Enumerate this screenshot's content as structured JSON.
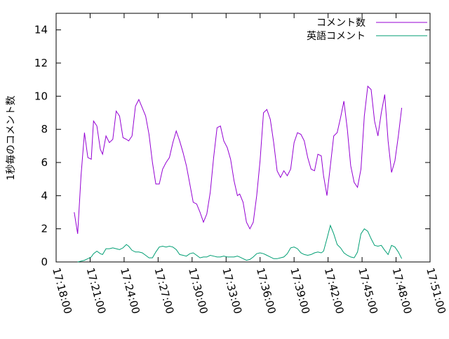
{
  "chart_data": {
    "type": "line",
    "title": "",
    "xlabel": "",
    "ylabel": "1秒毎のコメント数",
    "xlim_minutes": [
      0,
      33
    ],
    "ylim": [
      0,
      15
    ],
    "x_ticks": [
      {
        "label": "17:18:00",
        "minute": 0
      },
      {
        "label": "17:21:00",
        "minute": 3
      },
      {
        "label": "17:24:00",
        "minute": 6
      },
      {
        "label": "17:27:00",
        "minute": 9
      },
      {
        "label": "17:30:00",
        "minute": 12
      },
      {
        "label": "17:33:00",
        "minute": 15
      },
      {
        "label": "17:36:00",
        "minute": 18
      },
      {
        "label": "17:39:00",
        "minute": 21
      },
      {
        "label": "17:42:00",
        "minute": 24
      },
      {
        "label": "17:45:00",
        "minute": 27
      },
      {
        "label": "17:48:00",
        "minute": 30
      },
      {
        "label": "17:51:00",
        "minute": 33
      }
    ],
    "y_ticks": [
      0,
      2,
      4,
      6,
      8,
      10,
      12,
      14
    ],
    "grid": false,
    "legend_position": "top-right",
    "series": [
      {
        "name": "コメント数",
        "color": "#9400d3",
        "x": [
          1.6,
          1.9,
          2.2,
          2.5,
          2.8,
          3.1,
          3.3,
          3.6,
          3.9,
          4.1,
          4.4,
          4.7,
          5.0,
          5.3,
          5.6,
          5.9,
          6.2,
          6.4,
          6.7,
          7.0,
          7.3,
          7.6,
          7.9,
          8.2,
          8.5,
          8.8,
          9.1,
          9.4,
          9.7,
          10.0,
          10.3,
          10.6,
          10.9,
          11.2,
          11.5,
          11.8,
          12.1,
          12.4,
          12.7,
          13.0,
          13.3,
          13.6,
          13.9,
          14.2,
          14.5,
          14.8,
          15.1,
          15.4,
          15.7,
          16.0,
          16.2,
          16.5,
          16.8,
          17.1,
          17.4,
          17.7,
          18.0,
          18.3,
          18.6,
          18.9,
          19.2,
          19.5,
          19.8,
          20.1,
          20.4,
          20.7,
          21.0,
          21.3,
          21.6,
          21.9,
          22.2,
          22.5,
          22.8,
          23.1,
          23.4,
          23.6,
          23.9,
          24.2,
          24.5,
          24.8,
          25.1,
          25.4,
          25.7,
          26.0,
          26.3,
          26.6,
          26.9,
          27.2,
          27.5,
          27.8,
          28.1,
          28.4,
          28.7,
          29.0,
          29.3,
          29.6,
          29.9,
          30.2,
          30.5
        ],
        "values": [
          3.0,
          1.7,
          5.2,
          7.8,
          6.3,
          6.2,
          8.5,
          8.2,
          6.8,
          6.5,
          7.6,
          7.2,
          7.4,
          9.1,
          8.8,
          7.5,
          7.4,
          7.3,
          7.6,
          9.4,
          9.8,
          9.3,
          8.8,
          7.7,
          6.0,
          4.7,
          4.7,
          5.6,
          6.0,
          6.3,
          7.2,
          7.9,
          7.3,
          6.6,
          5.8,
          4.7,
          3.6,
          3.5,
          3.0,
          2.4,
          2.9,
          4.2,
          6.3,
          8.1,
          8.2,
          7.3,
          6.9,
          6.2,
          4.9,
          4.0,
          4.1,
          3.6,
          2.4,
          2.0,
          2.4,
          4.0,
          6.1,
          9.0,
          9.2,
          8.6,
          7.2,
          5.5,
          5.1,
          5.5,
          5.2,
          5.6,
          7.2,
          7.8,
          7.7,
          7.3,
          6.3,
          5.6,
          5.5,
          6.5,
          6.4,
          5.2,
          4.0,
          5.8,
          7.6,
          7.8,
          8.7,
          9.7,
          8.0,
          5.8,
          4.8,
          4.5,
          5.6,
          8.8,
          10.6,
          10.4,
          8.5,
          7.6,
          9.0,
          10.1,
          7.3,
          5.4,
          6.1,
          7.6,
          9.3
        ]
      },
      {
        "name": "英語コメント",
        "color": "#009e73",
        "x": [
          1.9,
          2.2,
          2.5,
          2.8,
          3.1,
          3.3,
          3.6,
          3.9,
          4.1,
          4.4,
          4.7,
          5.0,
          5.3,
          5.6,
          5.9,
          6.2,
          6.4,
          6.7,
          7.0,
          7.3,
          7.6,
          7.9,
          8.2,
          8.5,
          8.8,
          9.1,
          9.4,
          9.7,
          10.0,
          10.3,
          10.6,
          10.9,
          11.2,
          11.5,
          11.8,
          12.1,
          12.4,
          12.7,
          13.0,
          13.3,
          13.6,
          13.9,
          14.2,
          14.5,
          14.8,
          15.1,
          15.4,
          15.7,
          16.0,
          16.2,
          16.5,
          16.8,
          17.1,
          17.4,
          17.7,
          18.0,
          18.3,
          18.6,
          18.9,
          19.2,
          19.5,
          19.8,
          20.1,
          20.4,
          20.7,
          21.0,
          21.3,
          21.6,
          21.9,
          22.2,
          22.5,
          22.8,
          23.1,
          23.4,
          23.6,
          23.9,
          24.2,
          24.5,
          24.8,
          25.1,
          25.4,
          25.7,
          26.0,
          26.3,
          26.6,
          26.9,
          27.2,
          27.5,
          27.8,
          28.1,
          28.4,
          28.7,
          29.0,
          29.3,
          29.6,
          29.9,
          30.2,
          30.5
        ],
        "values": [
          0.0,
          0.05,
          0.1,
          0.2,
          0.3,
          0.5,
          0.65,
          0.5,
          0.45,
          0.8,
          0.8,
          0.85,
          0.8,
          0.75,
          0.85,
          1.05,
          0.95,
          0.7,
          0.6,
          0.6,
          0.55,
          0.4,
          0.25,
          0.25,
          0.6,
          0.9,
          0.95,
          0.9,
          0.95,
          0.9,
          0.75,
          0.45,
          0.4,
          0.35,
          0.5,
          0.55,
          0.4,
          0.25,
          0.3,
          0.3,
          0.4,
          0.35,
          0.3,
          0.3,
          0.35,
          0.3,
          0.3,
          0.3,
          0.35,
          0.3,
          0.2,
          0.1,
          0.15,
          0.3,
          0.5,
          0.55,
          0.5,
          0.4,
          0.3,
          0.2,
          0.2,
          0.25,
          0.3,
          0.5,
          0.85,
          0.9,
          0.8,
          0.55,
          0.45,
          0.4,
          0.45,
          0.55,
          0.6,
          0.55,
          0.65,
          1.4,
          2.2,
          1.7,
          1.05,
          0.85,
          0.55,
          0.4,
          0.3,
          0.25,
          0.6,
          1.7,
          2.0,
          1.85,
          1.4,
          1.0,
          0.95,
          1.0,
          0.7,
          0.45,
          1.0,
          0.9,
          0.6,
          0.2
        ]
      }
    ]
  }
}
